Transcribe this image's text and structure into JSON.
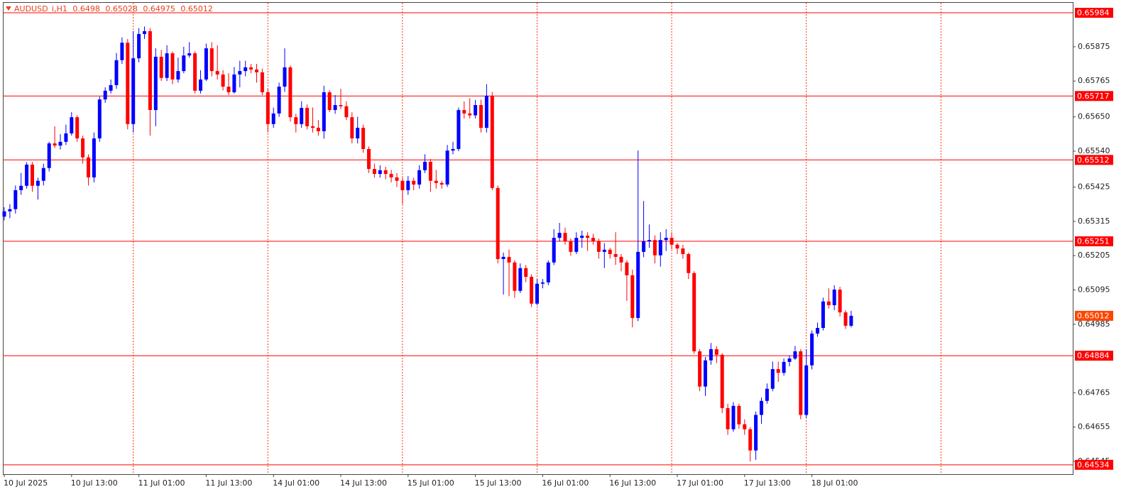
{
  "chart_data": {
    "type": "candlestick",
    "symbol": "AUDUSD_i,H1",
    "up_color": "#0000ff",
    "down_color": "#ff0000",
    "level_color": "#ff0000",
    "current_color": "#ff4500",
    "ylim": [
      0.64504,
      0.66025
    ],
    "yticks": [
      0.65875,
      0.65765,
      {
        "value": 0.6565,
        "label": "0.65650"
      },
      {
        "value": 0.6554,
        "label": "0.65540"
      },
      0.65425,
      0.65315,
      0.65205,
      0.65095,
      0.64985,
      0.64765,
      0.64655,
      0.64545
    ],
    "levels": [
      0.65984,
      0.65717,
      0.65512,
      0.65251,
      0.64884,
      0.64534
    ],
    "categories": [
      "10 Jul 2025",
      null,
      null,
      null,
      null,
      null,
      null,
      null,
      null,
      null,
      null,
      null,
      "10 Jul 13:00",
      null,
      null,
      null,
      null,
      null,
      null,
      null,
      null,
      null,
      null,
      null,
      "11 Jul 01:00",
      null,
      null,
      null,
      null,
      null,
      null,
      null,
      null,
      null,
      null,
      null,
      "11 Jul 13:00",
      null,
      null,
      null,
      null,
      null,
      null,
      null,
      null,
      null,
      null,
      null,
      "14 Jul 01:00",
      null,
      null,
      null,
      null,
      null,
      null,
      null,
      null,
      null,
      null,
      null,
      "14 Jul 13:00",
      null,
      null,
      null,
      null,
      null,
      null,
      null,
      null,
      null,
      null,
      null,
      "15 Jul 01:00",
      null,
      null,
      null,
      null,
      null,
      null,
      null,
      null,
      null,
      null,
      null,
      "15 Jul 13:00",
      null,
      null,
      null,
      null,
      null,
      null,
      null,
      null,
      null,
      null,
      null,
      "16 Jul 01:00",
      null,
      null,
      null,
      null,
      null,
      null,
      null,
      null,
      null,
      null,
      null,
      "16 Jul 13:00",
      null,
      null,
      null,
      null,
      null,
      null,
      null,
      null,
      null,
      null,
      null,
      "17 Jul 01:00",
      null,
      null,
      null,
      null,
      null,
      null,
      null,
      null,
      null,
      null,
      null,
      "17 Jul 13:00",
      null,
      null,
      null,
      null,
      null,
      null,
      null,
      null,
      null,
      null,
      null,
      "18 Jul 01:00",
      null,
      null,
      null,
      null,
      null,
      null,
      null
    ],
    "open": [
      0.6533,
      0.65347,
      0.65354,
      0.65415,
      0.65429,
      0.65497,
      0.65429,
      0.65445,
      0.65486,
      0.65565,
      0.65558,
      0.6557,
      0.65597,
      0.65649,
      0.65581,
      0.6552,
      0.65456,
      0.65581,
      0.65706,
      0.65734,
      0.65752,
      0.65832,
      0.65888,
      0.65627,
      0.65838,
      0.65916,
      0.65925,
      0.65672,
      0.65843,
      0.65775,
      0.65854,
      0.6577,
      0.65797,
      0.65847,
      0.65854,
      0.65734,
      0.6577,
      0.6587,
      0.65797,
      0.65786,
      0.65747,
      0.65729,
      0.65786,
      0.65797,
      0.65809,
      0.65802,
      0.65793,
      0.65729,
      0.65627,
      0.65661,
      0.65747,
      0.65809,
      0.65649,
      0.65627,
      0.65679,
      0.6562,
      0.65615,
      0.65604,
      0.65729,
      0.65672,
      0.65688,
      0.65684,
      0.65649,
      0.65581,
      0.65615,
      0.65547,
      0.65483,
      0.65467,
      0.65479,
      0.65467,
      0.65456,
      0.65445,
      0.65415,
      0.65445,
      0.65433,
      0.65479,
      0.65506,
      0.65445,
      0.65438,
      0.65433,
      0.65542,
      0.65547,
      0.65672,
      0.65661,
      0.65655,
      0.65688,
      0.65615,
      0.65718,
      0.65422,
      0.65194,
      0.65201,
      0.65183,
      0.65092,
      0.65165,
      0.65137,
      0.65051,
      0.65115,
      0.65119,
      0.65183,
      0.65262,
      0.65278,
      0.65251,
      0.65217,
      0.65262,
      0.65269,
      0.65262,
      0.65251,
      0.65217,
      0.65224,
      0.6521,
      0.65201,
      0.65183,
      0.65142,
      0.65005,
      0.65217,
      0.65251,
      0.65255,
      0.65206,
      0.65255,
      0.65262,
      0.6524,
      0.65228,
      0.6521,
      0.65149,
      0.64898,
      0.64785,
      0.64869,
      0.64905,
      0.64887,
      0.64716,
      0.64648,
      0.64723,
      0.64664,
      0.64648,
      0.6458,
      0.64694,
      0.64739,
      0.64778,
      0.64841,
      0.64829,
      0.64864,
      0.64875,
      0.64898,
      0.64694,
      0.64853,
      0.64955,
      0.64973,
      0.65058,
      0.65046,
      0.65096,
      0.65023,
      0.6498
    ],
    "high": [
      0.6536,
      0.6537,
      0.6543,
      0.6547,
      0.65505,
      0.65505,
      0.65455,
      0.655,
      0.6557,
      0.6562,
      0.65595,
      0.65625,
      0.65665,
      0.65655,
      0.6559,
      0.6553,
      0.656,
      0.65715,
      0.65745,
      0.6577,
      0.65855,
      0.65905,
      0.659,
      0.65925,
      0.65935,
      0.6594,
      0.65935,
      0.6587,
      0.65865,
      0.6588,
      0.6586,
      0.6584,
      0.65875,
      0.6589,
      0.6586,
      0.658,
      0.65885,
      0.6589,
      0.6588,
      0.658,
      0.6579,
      0.6581,
      0.6583,
      0.6583,
      0.6582,
      0.6582,
      0.65805,
      0.6574,
      0.6568,
      0.6576,
      0.6587,
      0.65815,
      0.6566,
      0.657,
      0.6569,
      0.6568,
      0.6564,
      0.6575,
      0.65735,
      0.6572,
      0.6574,
      0.657,
      0.65665,
      0.6565,
      0.65625,
      0.65555,
      0.655,
      0.65495,
      0.6549,
      0.6548,
      0.6547,
      0.65455,
      0.6546,
      0.65455,
      0.65495,
      0.6553,
      0.65515,
      0.6548,
      0.65445,
      0.6556,
      0.6557,
      0.6568,
      0.657,
      0.6571,
      0.65705,
      0.65705,
      0.65755,
      0.6573,
      0.6543,
      0.65215,
      0.65225,
      0.6519,
      0.6518,
      0.65175,
      0.65145,
      0.6513,
      0.6513,
      0.6519,
      0.6529,
      0.6531,
      0.65295,
      0.6526,
      0.6528,
      0.65285,
      0.6528,
      0.65275,
      0.6526,
      0.65245,
      0.6523,
      0.6528,
      0.6521,
      0.6519,
      0.6516,
      0.65542,
      0.6538,
      0.65305,
      0.6527,
      0.6528,
      0.6529,
      0.6528,
      0.65245,
      0.6524,
      0.65215,
      0.65155,
      0.64905,
      0.6488,
      0.64925,
      0.64915,
      0.64892,
      0.6473,
      0.64735,
      0.6473,
      0.6468,
      0.64655,
      0.64705,
      0.6475,
      0.64795,
      0.64865,
      0.64865,
      0.64875,
      0.64885,
      0.64915,
      0.64905,
      0.64905,
      0.64965,
      0.6499,
      0.6507,
      0.651,
      0.6511,
      0.65105,
      0.6503,
      0.65028
    ],
    "low": [
      0.65318,
      0.65325,
      0.6534,
      0.654,
      0.6542,
      0.6541,
      0.65385,
      0.6543,
      0.65475,
      0.6555,
      0.65545,
      0.6556,
      0.6559,
      0.6557,
      0.655,
      0.6543,
      0.6544,
      0.6557,
      0.65695,
      0.65725,
      0.6574,
      0.6582,
      0.6561,
      0.656,
      0.65825,
      0.659,
      0.6559,
      0.6562,
      0.65765,
      0.65765,
      0.65755,
      0.6576,
      0.6579,
      0.6584,
      0.65725,
      0.65725,
      0.65765,
      0.6578,
      0.6577,
      0.65735,
      0.6572,
      0.65725,
      0.65745,
      0.6578,
      0.6579,
      0.6576,
      0.6572,
      0.656,
      0.65615,
      0.6565,
      0.6573,
      0.65635,
      0.656,
      0.65615,
      0.6561,
      0.656,
      0.6559,
      0.6558,
      0.65665,
      0.6566,
      0.65675,
      0.6564,
      0.65565,
      0.65565,
      0.65535,
      0.6547,
      0.65455,
      0.65455,
      0.6545,
      0.6544,
      0.65425,
      0.6537,
      0.654,
      0.65415,
      0.6542,
      0.6547,
      0.6541,
      0.6542,
      0.6542,
      0.65425,
      0.6553,
      0.6554,
      0.65645,
      0.65645,
      0.65645,
      0.656,
      0.656,
      0.65415,
      0.6518,
      0.6508,
      0.65075,
      0.6507,
      0.65085,
      0.6512,
      0.6504,
      0.65045,
      0.651,
      0.6511,
      0.65175,
      0.6525,
      0.6524,
      0.65205,
      0.6521,
      0.6523,
      0.6522,
      0.6524,
      0.65195,
      0.65165,
      0.65195,
      0.65175,
      0.65155,
      0.6506,
      0.64975,
      0.64995,
      0.652,
      0.6523,
      0.6518,
      0.6517,
      0.6522,
      0.65225,
      0.6521,
      0.65195,
      0.6513,
      0.6489,
      0.6477,
      0.64755,
      0.64855,
      0.6486,
      0.647,
      0.6463,
      0.6464,
      0.6465,
      0.6463,
      0.64545,
      0.6455,
      0.64665,
      0.6473,
      0.6477,
      0.648,
      0.6482,
      0.6485,
      0.6487,
      0.6468,
      0.64685,
      0.6484,
      0.64945,
      0.64965,
      0.65035,
      0.6503,
      0.6501,
      0.6497,
      0.64975
    ],
    "close": [
      0.65347,
      0.65354,
      0.65415,
      0.65429,
      0.65497,
      0.65429,
      0.65445,
      0.65486,
      0.65565,
      0.65558,
      0.6557,
      0.65597,
      0.65649,
      0.65581,
      0.6552,
      0.65456,
      0.65581,
      0.65706,
      0.65734,
      0.65752,
      0.65832,
      0.65888,
      0.65627,
      0.65838,
      0.65916,
      0.65925,
      0.65672,
      0.65843,
      0.65775,
      0.65854,
      0.6577,
      0.65797,
      0.65847,
      0.65854,
      0.65734,
      0.6577,
      0.6587,
      0.65797,
      0.65786,
      0.65747,
      0.65729,
      0.65786,
      0.65797,
      0.65809,
      0.65802,
      0.65793,
      0.65729,
      0.65627,
      0.65661,
      0.65747,
      0.65809,
      0.65649,
      0.65627,
      0.65679,
      0.6562,
      0.65615,
      0.65604,
      0.65729,
      0.65672,
      0.65688,
      0.65684,
      0.65649,
      0.65581,
      0.65615,
      0.65547,
      0.65483,
      0.65467,
      0.65479,
      0.65467,
      0.65456,
      0.65445,
      0.65415,
      0.65445,
      0.65433,
      0.65479,
      0.65506,
      0.65445,
      0.65438,
      0.65433,
      0.65542,
      0.65547,
      0.65672,
      0.65661,
      0.65655,
      0.65688,
      0.65615,
      0.65718,
      0.65422,
      0.65194,
      0.65201,
      0.65183,
      0.65092,
      0.65165,
      0.65137,
      0.65051,
      0.65115,
      0.65119,
      0.65183,
      0.65262,
      0.65278,
      0.65251,
      0.65217,
      0.65262,
      0.65269,
      0.65262,
      0.65251,
      0.65217,
      0.65224,
      0.6521,
      0.65201,
      0.65183,
      0.65142,
      0.65005,
      0.65217,
      0.65251,
      0.65255,
      0.65206,
      0.65255,
      0.65262,
      0.6524,
      0.65228,
      0.6521,
      0.65149,
      0.64898,
      0.64785,
      0.64869,
      0.64905,
      0.64887,
      0.64716,
      0.64648,
      0.64723,
      0.64664,
      0.64648,
      0.6458,
      0.64694,
      0.64739,
      0.64778,
      0.64841,
      0.64829,
      0.64864,
      0.64875,
      0.64898,
      0.64694,
      0.64853,
      0.64955,
      0.64973,
      0.65058,
      0.65046,
      0.65096,
      0.65023,
      0.6498,
      0.65012
    ]
  }
}
